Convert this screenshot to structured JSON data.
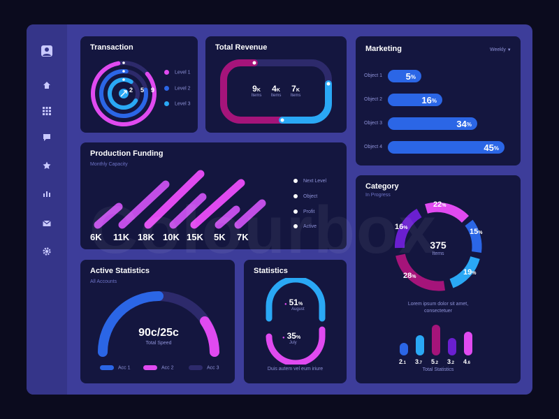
{
  "colors": {
    "background": "#0b0b1e",
    "frame": "#3d3d9a",
    "sidebar": "#353589",
    "card": "#14163f",
    "pink": "#e04af0",
    "magenta": "#a5147a",
    "blue": "#2b66e6",
    "cyan": "#2aa8f5",
    "purple": "#6a1fd0",
    "track": "#2d2a6b"
  },
  "sidebar": {
    "items": [
      "user-icon",
      "home-icon",
      "grid-icon",
      "chat-icon",
      "star-icon",
      "chart-icon",
      "mail-icon",
      "gear-icon"
    ]
  },
  "transaction": {
    "title": "Transaction",
    "ring_labels": [
      "2",
      "5",
      "9"
    ],
    "legend": [
      {
        "label": "Level 1",
        "color": "#e04af0"
      },
      {
        "label": "Level 2",
        "color": "#2b66e6"
      },
      {
        "label": "Level 3",
        "color": "#2aa8f5"
      }
    ]
  },
  "revenue": {
    "title": "Total Revenue",
    "stats": [
      {
        "value": "9",
        "unit": "K",
        "label": "Items"
      },
      {
        "value": "4",
        "unit": "K",
        "label": "Items"
      },
      {
        "value": "7",
        "unit": "K",
        "label": "Items"
      }
    ]
  },
  "marketing": {
    "title": "Marketing",
    "period": "Weekly",
    "bars": [
      {
        "label": "Object 1",
        "value": "5",
        "unit": "%",
        "level": 5
      },
      {
        "label": "Object 2",
        "value": "16",
        "unit": "%",
        "level": 16
      },
      {
        "label": "Object 3",
        "value": "34",
        "unit": "%",
        "level": 34
      },
      {
        "label": "Object 4",
        "value": "45",
        "unit": "%",
        "level": 45
      }
    ]
  },
  "funding": {
    "title": "Production Funding",
    "subtitle": "Monthly Capacity",
    "values": [
      "6K",
      "11K",
      "18K",
      "10K",
      "15K",
      "5K",
      "7K"
    ],
    "legend": [
      "Next Level",
      "Object",
      "Profit",
      "Active"
    ]
  },
  "category": {
    "title": "Category",
    "subtitle": "In Progress",
    "center_value": "375",
    "center_label": "Items",
    "segments": [
      {
        "value": "22",
        "unit": "%"
      },
      {
        "value": "15",
        "unit": "%"
      },
      {
        "value": "19",
        "unit": "%"
      },
      {
        "value": "28",
        "unit": "%"
      },
      {
        "value": "16",
        "unit": "%"
      }
    ],
    "caption_line1": "Lorem ipsum dolor sit amet,",
    "caption_line2": "consectetuer",
    "mini_bars": [
      {
        "int": "2",
        "dec": ".1"
      },
      {
        "int": "3",
        "dec": ".7"
      },
      {
        "int": "5",
        "dec": ".2"
      },
      {
        "int": "3",
        "dec": ".2"
      },
      {
        "int": "4",
        "dec": ".6"
      }
    ],
    "mini_title": "Total Statistics"
  },
  "active_stats": {
    "title": "Active Statistics",
    "subtitle": "All Accounts",
    "value": "90c/25c",
    "value_label": "Total Speed",
    "legend": [
      {
        "label": "Acc 1",
        "color": "#2b66e6"
      },
      {
        "label": "Acc  2",
        "color": "#e04af0"
      },
      {
        "label": "Acc  3",
        "color": "#2d2a6b"
      }
    ]
  },
  "statistics": {
    "title": "Statistics",
    "top_value": "51",
    "top_unit": "%",
    "top_label": "August",
    "bottom_value": "35",
    "bottom_unit": "%",
    "bottom_label": "July",
    "caption": "Duis autem vel eum iriure"
  },
  "watermark": "Colourbox"
}
